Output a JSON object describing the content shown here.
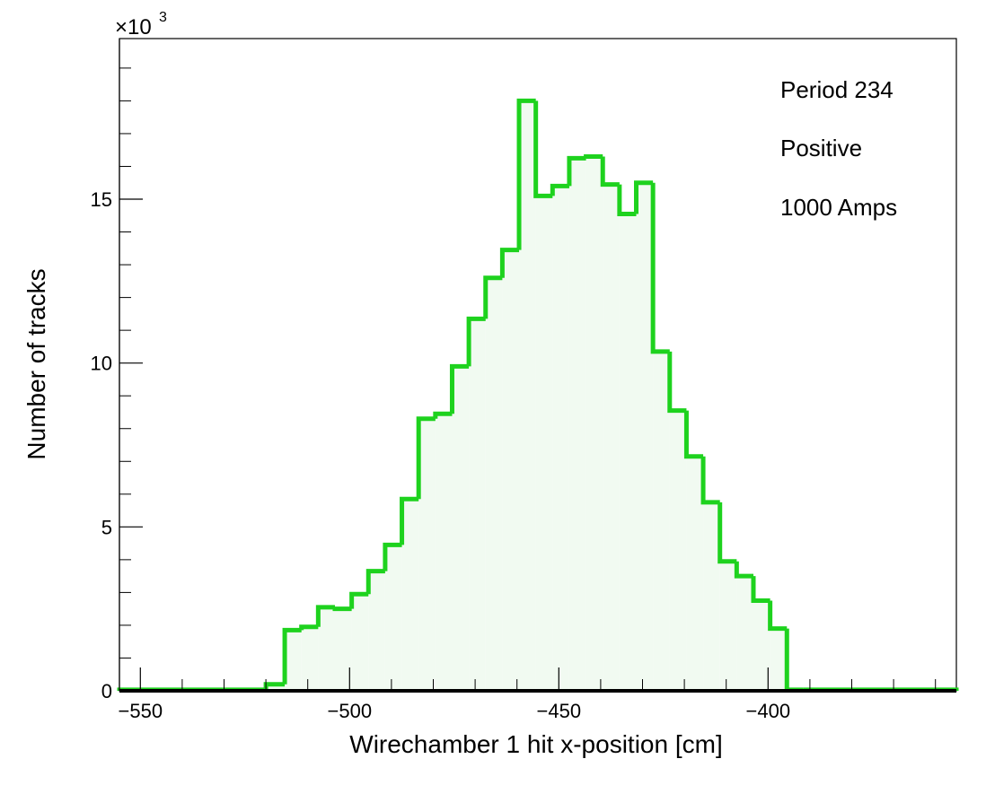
{
  "chart_data": {
    "type": "bar",
    "subtype": "step-histogram",
    "xlabel": "Wirechamber 1 hit x-position [cm]",
    "ylabel": "Number of tracks",
    "y_multiplier": {
      "prefix": "×10",
      "exponent": "3"
    },
    "xlim": [
      -555,
      -355
    ],
    "ylim": [
      0,
      19.9
    ],
    "x_ticks": [
      -550,
      -500,
      -450,
      -400
    ],
    "x_tick_labels": [
      "−550",
      "−500",
      "−450",
      "−400"
    ],
    "y_ticks": [
      0,
      5,
      10,
      15
    ],
    "y_tick_labels": [
      "0",
      "5",
      "10",
      "15"
    ],
    "annotations": [
      "Period 234",
      "Positive",
      "1000 Amps"
    ],
    "bin_edges": [
      -555,
      -520,
      -515.5,
      -511.5,
      -507.5,
      -503.5,
      -499.5,
      -495.5,
      -491.5,
      -487.5,
      -483.5,
      -479.5,
      -475.5,
      -471.5,
      -467.5,
      -463.5,
      -459.5,
      -455.5,
      -451.5,
      -447.5,
      -443.5,
      -439.5,
      -435.5,
      -431.5,
      -427.5,
      -423.5,
      -419.5,
      -415.5,
      -411.5,
      -407.5,
      -403.5,
      -399.5,
      -395.5,
      -391.5,
      -355
    ],
    "values": [
      0.03,
      0.2,
      1.85,
      1.95,
      2.55,
      2.5,
      2.95,
      3.65,
      4.45,
      5.85,
      8.3,
      8.45,
      9.9,
      11.35,
      12.6,
      13.45,
      18.0,
      15.1,
      15.4,
      16.25,
      16.3,
      15.45,
      14.55,
      15.5,
      10.35,
      8.55,
      7.15,
      5.75,
      3.95,
      3.5,
      2.75,
      1.9,
      0.03,
      0.03
    ],
    "line_color": "#1ed21e",
    "fill_color": "#f1faf1",
    "legend": "none",
    "grid": false
  }
}
